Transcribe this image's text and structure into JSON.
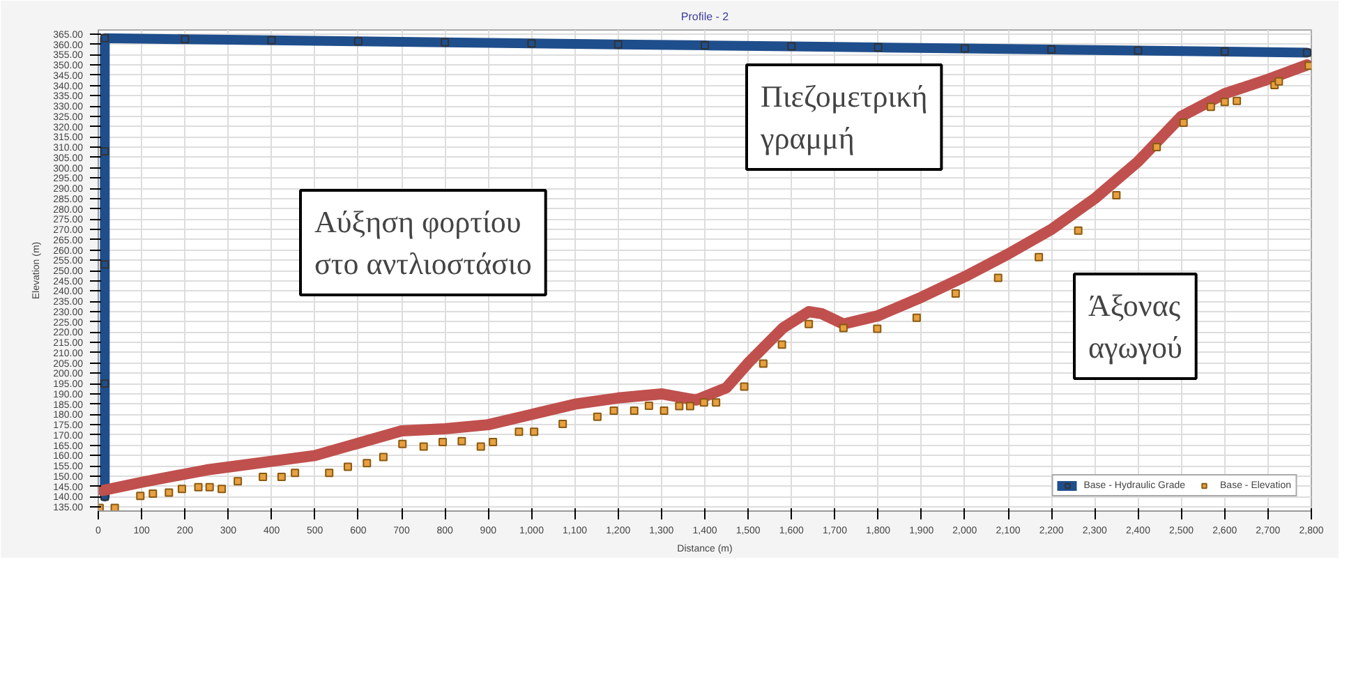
{
  "chart_data": {
    "type": "line",
    "title": "Profile - 2",
    "xlabel": "Distance (m)",
    "ylabel": "Elevation (m)",
    "xlim": [
      0,
      2800
    ],
    "xticks": [
      {
        "value": 0,
        "label": "0"
      },
      {
        "value": 100,
        "label": "100"
      },
      {
        "value": 200,
        "label": "200"
      },
      {
        "value": 300,
        "label": "300"
      },
      {
        "value": 400,
        "label": "400"
      },
      {
        "value": 500,
        "label": "500"
      },
      {
        "value": 600,
        "label": "600"
      },
      {
        "value": 700,
        "label": "700"
      },
      {
        "value": 800,
        "label": "800"
      },
      {
        "value": 900,
        "label": "900"
      },
      {
        "value": 1000,
        "label": "1,000"
      },
      {
        "value": 1100,
        "label": "1,100"
      },
      {
        "value": 1200,
        "label": "1,200"
      },
      {
        "value": 1300,
        "label": "1,300"
      },
      {
        "value": 1400,
        "label": "1,400"
      },
      {
        "value": 1500,
        "label": "1,500"
      },
      {
        "value": 1600,
        "label": "1,600"
      },
      {
        "value": 1700,
        "label": "1,700"
      },
      {
        "value": 1800,
        "label": "1,800"
      },
      {
        "value": 1900,
        "label": "1,900"
      },
      {
        "value": 2000,
        "label": "2,000"
      },
      {
        "value": 2100,
        "label": "2,100"
      },
      {
        "value": 2200,
        "label": "2,200"
      },
      {
        "value": 2300,
        "label": "2,300"
      },
      {
        "value": 2400,
        "label": "2,400"
      },
      {
        "value": 2500,
        "label": "2,500"
      },
      {
        "value": 2600,
        "label": "2,600"
      },
      {
        "value": 2700,
        "label": "2,700"
      },
      {
        "value": 2800,
        "label": "2,800"
      }
    ],
    "ylim": [
      133,
      367
    ],
    "yticks": [
      {
        "value": 135,
        "label": "135.00"
      },
      {
        "value": 140,
        "label": "140.00"
      },
      {
        "value": 145,
        "label": "145.00"
      },
      {
        "value": 150,
        "label": "150.00"
      },
      {
        "value": 155,
        "label": "155.00"
      },
      {
        "value": 160,
        "label": "160.00"
      },
      {
        "value": 165,
        "label": "165.00"
      },
      {
        "value": 170,
        "label": "170.00"
      },
      {
        "value": 175,
        "label": "175.00"
      },
      {
        "value": 180,
        "label": "180.00"
      },
      {
        "value": 185,
        "label": "185.00"
      },
      {
        "value": 190,
        "label": "190.00"
      },
      {
        "value": 195,
        "label": "195.00"
      },
      {
        "value": 200,
        "label": "200.00"
      },
      {
        "value": 205,
        "label": "205.00"
      },
      {
        "value": 210,
        "label": "210.00"
      },
      {
        "value": 215,
        "label": "215.00"
      },
      {
        "value": 220,
        "label": "220.00"
      },
      {
        "value": 225,
        "label": "225.00"
      },
      {
        "value": 230,
        "label": "230.00"
      },
      {
        "value": 235,
        "label": "235.00"
      },
      {
        "value": 240,
        "label": "240.00"
      },
      {
        "value": 245,
        "label": "245.00"
      },
      {
        "value": 250,
        "label": "250.00"
      },
      {
        "value": 255,
        "label": "255.00"
      },
      {
        "value": 260,
        "label": "260.00"
      },
      {
        "value": 265,
        "label": "265.00"
      },
      {
        "value": 270,
        "label": "270.00"
      },
      {
        "value": 275,
        "label": "275.00"
      },
      {
        "value": 280,
        "label": "280.00"
      },
      {
        "value": 285,
        "label": "285.00"
      },
      {
        "value": 290,
        "label": "290.00"
      },
      {
        "value": 295,
        "label": "295.00"
      },
      {
        "value": 300,
        "label": "300.00"
      },
      {
        "value": 305,
        "label": "305.00"
      },
      {
        "value": 310,
        "label": "310.00"
      },
      {
        "value": 315,
        "label": "315.00"
      },
      {
        "value": 320,
        "label": "320.00"
      },
      {
        "value": 325,
        "label": "325.00"
      },
      {
        "value": 330,
        "label": "330.00"
      },
      {
        "value": 335,
        "label": "335.00"
      },
      {
        "value": 340,
        "label": "340.00"
      },
      {
        "value": 345,
        "label": "345.00"
      },
      {
        "value": 350,
        "label": "350.00"
      },
      {
        "value": 355,
        "label": "355.00"
      },
      {
        "value": 360,
        "label": "360.00"
      },
      {
        "value": 365,
        "label": "365.00"
      }
    ],
    "grid": true,
    "legend": "bottom",
    "marker": "square",
    "line_style": "solid",
    "series": [
      {
        "name": "Base - Hydraulic Grade",
        "color": "#1f4e8c",
        "x": [
          15,
          15,
          15,
          15,
          15,
          200,
          400,
          600,
          800,
          1000,
          1200,
          1400,
          1600,
          1800,
          2000,
          2200,
          2400,
          2600,
          2790
        ],
        "values": [
          140,
          195,
          253,
          308,
          363,
          362.5,
          362,
          361.5,
          361,
          360.5,
          360,
          359.5,
          359,
          358.5,
          358,
          357.5,
          357,
          356.5,
          356
        ]
      },
      {
        "name": "Base - Elevation",
        "color": "#e8a040",
        "type": "scatter",
        "x": [
          3,
          38,
          97,
          126,
          163,
          193,
          231,
          257,
          285,
          322,
          380,
          423,
          454,
          533,
          576,
          620,
          658,
          702,
          751,
          795,
          839,
          883,
          911,
          971,
          1006,
          1072,
          1152,
          1190,
          1237,
          1271,
          1306,
          1341,
          1366,
          1398,
          1426,
          1491,
          1535,
          1578,
          1640,
          1720,
          1798,
          1889,
          1979,
          2077,
          2171,
          2262,
          2350,
          2443,
          2505,
          2568,
          2600,
          2628,
          2715,
          2725,
          2794
        ],
        "values": [
          134.5,
          134.5,
          140.4,
          141.5,
          142,
          143.8,
          144.6,
          144.6,
          143.8,
          147.5,
          149.6,
          149.6,
          151.6,
          151.6,
          154.5,
          156.3,
          159.3,
          165.6,
          164.4,
          166.6,
          167,
          164.4,
          166.6,
          171.6,
          171.6,
          175.4,
          178.9,
          181.8,
          181.8,
          184.2,
          181.8,
          184,
          184,
          185.8,
          185.8,
          193.5,
          204.7,
          214,
          224,
          222,
          221.7,
          227,
          238.8,
          246.4,
          256.5,
          269.4,
          286.6,
          310,
          321.9,
          329.6,
          332,
          332.5,
          340.2,
          342,
          349.6
        ]
      },
      {
        "color": "#c0504d",
        "marker": "none",
        "x": [
          10,
          100,
          250,
          500,
          600,
          700,
          800,
          900,
          1000,
          1100,
          1200,
          1300,
          1380,
          1450,
          1500,
          1580,
          1640,
          1670,
          1720,
          1800,
          1900,
          2000,
          2100,
          2200,
          2300,
          2400,
          2500,
          2600,
          2700,
          2790
        ],
        "values": [
          143,
          147,
          153,
          160,
          166,
          172,
          173,
          175,
          180,
          185,
          188,
          190,
          187,
          193,
          205,
          222,
          230,
          229,
          224,
          228,
          237,
          247,
          258,
          270,
          285,
          303,
          325,
          336,
          343,
          350
        ]
      }
    ],
    "annotations": [
      "Αύξηση φορτίου στο αντλιοστάσιο",
      "Πιεζομετρική γραμμή",
      "Άξονας αγωγού"
    ]
  }
}
